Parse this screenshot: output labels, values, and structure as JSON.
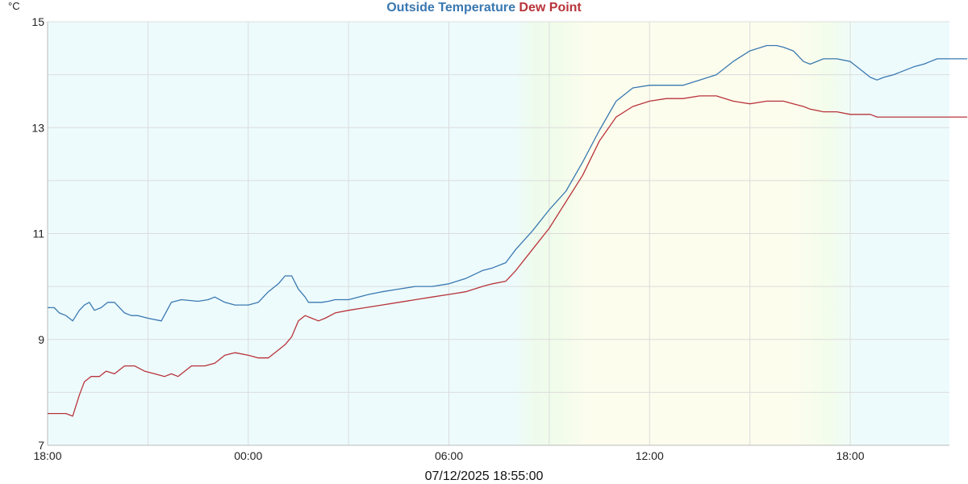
{
  "chart_data": {
    "type": "line",
    "y_unit": "°C",
    "ylim": [
      7,
      15
    ],
    "y_ticks": [
      "15",
      "13",
      "11",
      "9",
      "7"
    ],
    "x_ticks": [
      "18:00",
      "00:00",
      "06:00",
      "12:00",
      "18:00"
    ],
    "xlim_hours": [
      0,
      27
    ],
    "x_tick_hours": [
      0,
      6,
      12,
      18,
      24
    ],
    "grid": true,
    "legend_position": "top-center",
    "footer_timestamp": "07/12/2025 18:55:00",
    "series": [
      {
        "name": "Outside Temperature",
        "color": "#3a78b0",
        "x": [
          0,
          0.2,
          0.35,
          0.55,
          0.75,
          0.95,
          1.1,
          1.25,
          1.4,
          1.6,
          1.8,
          2.0,
          2.3,
          2.5,
          2.7,
          3.0,
          3.4,
          3.7,
          4.0,
          4.5,
          4.8,
          5.0,
          5.3,
          5.6,
          6.0,
          6.3,
          6.6,
          6.9,
          7.1,
          7.3,
          7.5,
          7.7,
          7.8,
          8.0,
          8.2,
          8.4,
          8.6,
          8.8,
          9.0,
          9.3,
          9.6,
          10.0,
          10.5,
          11.0,
          11.5,
          12.0,
          12.5,
          13.0,
          13.3,
          13.7,
          14.0,
          14.5,
          15.0,
          15.5,
          16.0,
          16.5,
          17.0,
          17.5,
          18.0,
          18.5,
          19.0,
          19.5,
          20.0,
          20.5,
          21.0,
          21.5,
          21.8,
          22.0,
          22.3,
          22.6,
          22.8,
          23.2,
          23.6,
          24.0,
          24.4,
          24.6,
          24.8,
          25.0,
          25.3,
          25.5,
          25.9,
          26.2,
          26.4,
          26.6,
          26.8,
          27.0,
          27.2,
          27.5
        ],
        "values": [
          9.6,
          9.6,
          9.5,
          9.45,
          9.35,
          9.55,
          9.65,
          9.7,
          9.55,
          9.6,
          9.7,
          9.7,
          9.5,
          9.45,
          9.45,
          9.4,
          9.35,
          9.7,
          9.75,
          9.72,
          9.75,
          9.8,
          9.7,
          9.65,
          9.65,
          9.7,
          9.9,
          10.05,
          10.2,
          10.2,
          9.95,
          9.8,
          9.7,
          9.7,
          9.7,
          9.72,
          9.75,
          9.75,
          9.75,
          9.8,
          9.85,
          9.9,
          9.95,
          10.0,
          10.0,
          10.05,
          10.15,
          10.3,
          10.35,
          10.45,
          10.7,
          11.05,
          11.45,
          11.8,
          12.35,
          12.95,
          13.5,
          13.75,
          13.8,
          13.8,
          13.8,
          13.9,
          14.0,
          14.25,
          14.45,
          14.55,
          14.55,
          14.52,
          14.45,
          14.25,
          14.2,
          14.3,
          14.3,
          14.25,
          14.05,
          13.95,
          13.9,
          13.95,
          14.0,
          14.05,
          14.15,
          14.2,
          14.25,
          14.3,
          14.3,
          14.3,
          14.3,
          14.3
        ]
      },
      {
        "name": "Dew Point",
        "color": "#b8343a",
        "x": [
          0,
          0.3,
          0.55,
          0.75,
          0.95,
          1.1,
          1.3,
          1.55,
          1.75,
          2.0,
          2.3,
          2.6,
          2.9,
          3.2,
          3.5,
          3.7,
          3.9,
          4.3,
          4.7,
          5.0,
          5.3,
          5.6,
          6.0,
          6.3,
          6.6,
          6.9,
          7.1,
          7.3,
          7.5,
          7.7,
          7.9,
          8.1,
          8.3,
          8.6,
          9.0,
          9.5,
          10.0,
          10.5,
          11.0,
          11.5,
          12.0,
          12.5,
          13.0,
          13.3,
          13.7,
          14.0,
          14.5,
          15.0,
          15.5,
          16.0,
          16.5,
          17.0,
          17.5,
          18.0,
          18.5,
          19.0,
          19.5,
          20.0,
          20.5,
          21.0,
          21.5,
          21.8,
          22.0,
          22.3,
          22.6,
          22.8,
          23.2,
          23.6,
          24.0,
          24.4,
          24.6,
          24.8,
          25.0,
          25.3,
          25.5,
          25.9,
          26.2,
          26.4,
          26.6,
          26.8,
          27.0,
          27.2,
          27.5
        ],
        "values": [
          7.6,
          7.6,
          7.6,
          7.55,
          7.95,
          8.2,
          8.3,
          8.3,
          8.4,
          8.35,
          8.5,
          8.5,
          8.4,
          8.35,
          8.3,
          8.35,
          8.3,
          8.5,
          8.5,
          8.55,
          8.7,
          8.75,
          8.7,
          8.65,
          8.65,
          8.8,
          8.9,
          9.05,
          9.35,
          9.45,
          9.4,
          9.35,
          9.4,
          9.5,
          9.55,
          9.6,
          9.65,
          9.7,
          9.75,
          9.8,
          9.85,
          9.9,
          10.0,
          10.05,
          10.1,
          10.3,
          10.7,
          11.1,
          11.6,
          12.1,
          12.75,
          13.2,
          13.4,
          13.5,
          13.55,
          13.55,
          13.6,
          13.6,
          13.5,
          13.45,
          13.5,
          13.5,
          13.5,
          13.45,
          13.4,
          13.35,
          13.3,
          13.3,
          13.25,
          13.25,
          13.25,
          13.2,
          13.2,
          13.2,
          13.2,
          13.2,
          13.2,
          13.2,
          13.2,
          13.2,
          13.2,
          13.2,
          13.2
        ]
      }
    ]
  }
}
